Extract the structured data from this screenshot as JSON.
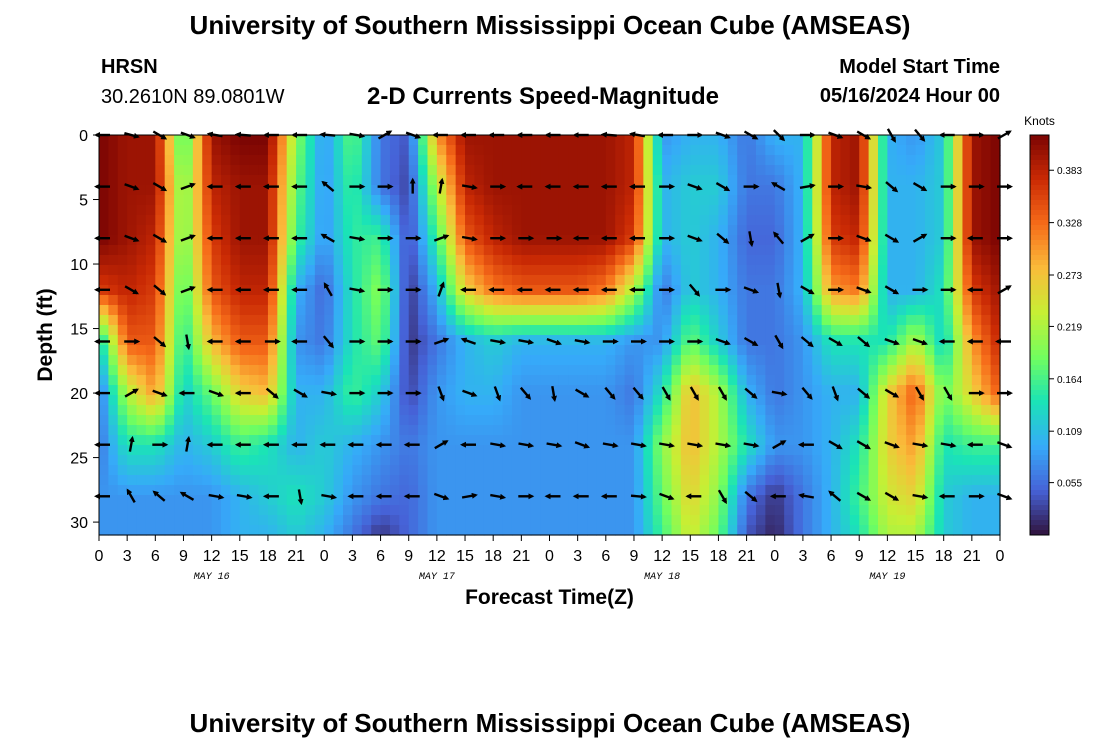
{
  "header": {
    "title": "University of Southern Mississippi Ocean Cube (AMSEAS)",
    "station": "HRSN",
    "coords": "30.2610N  89.0801W",
    "subtitle": "2-D Currents Speed-Magnitude",
    "model_start_label": "Model Start Time",
    "model_start_value": "05/16/2024 Hour 00"
  },
  "footer": {
    "title": "University of Southern Mississippi Ocean Cube (AMSEAS)"
  },
  "chart_data": {
    "type": "heatmap",
    "xlabel": "Forecast Time(Z)",
    "ylabel": "Depth (ft)",
    "xlim": [
      0,
      96
    ],
    "ylim": [
      0,
      31
    ],
    "x_tick_values": [
      0,
      3,
      6,
      9,
      12,
      15,
      18,
      21,
      24,
      27,
      30,
      33,
      36,
      39,
      42,
      45,
      48,
      51,
      54,
      57,
      60,
      63,
      66,
      69,
      72,
      75,
      78,
      81,
      84,
      87,
      90,
      93,
      96
    ],
    "x_tick_labels": [
      "0",
      "3",
      "6",
      "9",
      "12",
      "15",
      "18",
      "21",
      "0",
      "3",
      "6",
      "9",
      "12",
      "15",
      "18",
      "21",
      "0",
      "3",
      "6",
      "9",
      "12",
      "15",
      "18",
      "21",
      "0",
      "3",
      "6",
      "9",
      "12",
      "15",
      "18",
      "21",
      "0"
    ],
    "day_labels": [
      {
        "hour": 12,
        "text": "MAY 16"
      },
      {
        "hour": 36,
        "text": "MAY 17"
      },
      {
        "hour": 60,
        "text": "MAY 18"
      },
      {
        "hour": 84,
        "text": "MAY 19"
      }
    ],
    "y_ticks": [
      0,
      5,
      10,
      15,
      20,
      25,
      30
    ],
    "colorbar": {
      "unit": "Knots",
      "min": 0,
      "max": 0.42,
      "ticks": [
        0.055,
        0.109,
        0.164,
        0.219,
        0.273,
        0.328,
        0.383
      ],
      "tick_labels": [
        "0.055",
        "0.109",
        "0.164",
        "0.219",
        "0.273",
        "0.328",
        "0.383"
      ],
      "colors": [
        "#30123b",
        "#4662d7",
        "#36aaf9",
        "#1ae4b6",
        "#72fe5e",
        "#c7ef34",
        "#fabb3a",
        "#f66b19",
        "#ca2a04",
        "#7a0403"
      ]
    },
    "speed_knots_matrix": {
      "note": "rows = depth levels (ft), columns = forecast hours; values estimated from color scale",
      "depths_ft": [
        0,
        4,
        8,
        12,
        16,
        20,
        24,
        28,
        31
      ],
      "hours": [
        0,
        3,
        6,
        9,
        12,
        15,
        18,
        21,
        24,
        27,
        30,
        33,
        36,
        39,
        42,
        45,
        48,
        51,
        54,
        57,
        60,
        63,
        66,
        69,
        72,
        75,
        78,
        81,
        84,
        87,
        90,
        93,
        96
      ],
      "values": [
        [
          0.42,
          0.4,
          0.4,
          0.15,
          0.4,
          0.42,
          0.42,
          0.2,
          0.08,
          0.18,
          0.06,
          0.04,
          0.3,
          0.4,
          0.4,
          0.4,
          0.4,
          0.4,
          0.4,
          0.38,
          0.08,
          0.1,
          0.1,
          0.06,
          0.1,
          0.1,
          0.38,
          0.4,
          0.1,
          0.08,
          0.12,
          0.4,
          0.42
        ],
        [
          0.42,
          0.4,
          0.4,
          0.18,
          0.38,
          0.4,
          0.4,
          0.18,
          0.08,
          0.16,
          0.06,
          0.03,
          0.22,
          0.38,
          0.4,
          0.4,
          0.4,
          0.4,
          0.4,
          0.38,
          0.1,
          0.12,
          0.12,
          0.06,
          0.06,
          0.1,
          0.38,
          0.4,
          0.1,
          0.1,
          0.12,
          0.4,
          0.42
        ],
        [
          0.42,
          0.4,
          0.38,
          0.18,
          0.36,
          0.4,
          0.4,
          0.16,
          0.08,
          0.15,
          0.16,
          0.03,
          0.16,
          0.34,
          0.38,
          0.4,
          0.4,
          0.4,
          0.4,
          0.36,
          0.1,
          0.12,
          0.1,
          0.05,
          0.05,
          0.1,
          0.36,
          0.38,
          0.1,
          0.1,
          0.12,
          0.4,
          0.42
        ],
        [
          0.36,
          0.38,
          0.36,
          0.16,
          0.34,
          0.38,
          0.38,
          0.1,
          0.05,
          0.14,
          0.2,
          0.02,
          0.1,
          0.26,
          0.32,
          0.34,
          0.34,
          0.34,
          0.32,
          0.22,
          0.06,
          0.12,
          0.1,
          0.06,
          0.06,
          0.1,
          0.3,
          0.32,
          0.1,
          0.1,
          0.14,
          0.36,
          0.4
        ],
        [
          0.12,
          0.34,
          0.34,
          0.14,
          0.28,
          0.34,
          0.34,
          0.08,
          0.06,
          0.14,
          0.18,
          0.02,
          0.06,
          0.1,
          0.12,
          0.1,
          0.1,
          0.1,
          0.1,
          0.08,
          0.08,
          0.18,
          0.12,
          0.06,
          0.06,
          0.08,
          0.14,
          0.14,
          0.14,
          0.22,
          0.12,
          0.3,
          0.38
        ],
        [
          0.06,
          0.22,
          0.3,
          0.12,
          0.18,
          0.26,
          0.28,
          0.1,
          0.1,
          0.16,
          0.12,
          0.03,
          0.08,
          0.1,
          0.1,
          0.08,
          0.08,
          0.08,
          0.08,
          0.06,
          0.14,
          0.28,
          0.22,
          0.1,
          0.06,
          0.08,
          0.1,
          0.1,
          0.26,
          0.34,
          0.18,
          0.26,
          0.34
        ],
        [
          0.06,
          0.14,
          0.14,
          0.1,
          0.12,
          0.16,
          0.14,
          0.1,
          0.12,
          0.1,
          0.08,
          0.06,
          0.08,
          0.08,
          0.08,
          0.08,
          0.08,
          0.08,
          0.08,
          0.08,
          0.2,
          0.28,
          0.22,
          0.14,
          0.08,
          0.08,
          0.1,
          0.14,
          0.26,
          0.3,
          0.14,
          0.16,
          0.16
        ],
        [
          0.08,
          0.08,
          0.08,
          0.08,
          0.08,
          0.1,
          0.12,
          0.14,
          0.12,
          0.08,
          0.06,
          0.05,
          0.08,
          0.08,
          0.08,
          0.08,
          0.08,
          0.08,
          0.08,
          0.08,
          0.18,
          0.26,
          0.2,
          0.06,
          0.02,
          0.06,
          0.1,
          0.16,
          0.24,
          0.26,
          0.12,
          0.1,
          0.1
        ],
        [
          0.08,
          0.08,
          0.08,
          0.08,
          0.08,
          0.1,
          0.1,
          0.12,
          0.1,
          0.06,
          0.02,
          0.05,
          0.08,
          0.08,
          0.08,
          0.08,
          0.08,
          0.08,
          0.08,
          0.08,
          0.16,
          0.24,
          0.18,
          0.04,
          0.01,
          0.06,
          0.1,
          0.14,
          0.22,
          0.22,
          0.12,
          0.1,
          0.1
        ]
      ]
    },
    "current_arrows": {
      "note": "direction angles in degrees (0 = pointing right/east, 90 = up/north); grid points every 3 h at depths 0,4,8,...,28 ft",
      "depths_ft": [
        0,
        4,
        8,
        12,
        16,
        20,
        24,
        28
      ],
      "hours": [
        0,
        3,
        6,
        9,
        12,
        15,
        18,
        21,
        24,
        27,
        30,
        33,
        36,
        39,
        42,
        45,
        48,
        51,
        54,
        57,
        60,
        63,
        66,
        69,
        72,
        75,
        78,
        81,
        84,
        87,
        90,
        93,
        96
      ],
      "angles_deg": [
        [
          180,
          -15,
          -30,
          -20,
          170,
          175,
          180,
          180,
          175,
          -10,
          30,
          -20,
          180,
          180,
          180,
          180,
          180,
          180,
          175,
          170,
          180,
          0,
          -20,
          -30,
          -45,
          0,
          -20,
          -30,
          -60,
          -50,
          180,
          0,
          30
        ],
        [
          180,
          -20,
          -30,
          20,
          180,
          180,
          180,
          180,
          140,
          0,
          0,
          90,
          80,
          -10,
          0,
          180,
          180,
          180,
          180,
          180,
          0,
          -20,
          -30,
          0,
          150,
          10,
          0,
          -10,
          -40,
          -30,
          0,
          0,
          0
        ],
        [
          180,
          -20,
          -30,
          20,
          180,
          180,
          180,
          180,
          150,
          -10,
          0,
          0,
          20,
          -10,
          0,
          0,
          0,
          180,
          180,
          180,
          0,
          -20,
          -40,
          -80,
          130,
          30,
          0,
          -20,
          -30,
          30,
          0,
          180,
          0
        ],
        [
          180,
          -30,
          -40,
          20,
          180,
          180,
          180,
          180,
          120,
          -10,
          0,
          0,
          70,
          180,
          180,
          180,
          180,
          180,
          180,
          180,
          0,
          -50,
          0,
          -20,
          -80,
          -30,
          0,
          -20,
          -30,
          0,
          0,
          180,
          30
        ],
        [
          180,
          0,
          -40,
          -80,
          180,
          180,
          0,
          180,
          -50,
          0,
          0,
          0,
          20,
          160,
          -10,
          -10,
          -20,
          -10,
          0,
          0,
          0,
          0,
          -20,
          -30,
          -60,
          -40,
          -30,
          -40,
          -20,
          -20,
          180,
          180,
          180
        ],
        [
          180,
          30,
          -20,
          180,
          -20,
          180,
          -40,
          -30,
          -10,
          0,
          0,
          0,
          -70,
          -20,
          -70,
          -50,
          -80,
          -30,
          -50,
          -50,
          -60,
          -60,
          -60,
          -40,
          -10,
          -50,
          -70,
          -40,
          -30,
          -60,
          -60,
          0,
          0
        ],
        [
          180,
          80,
          0,
          80,
          180,
          180,
          180,
          180,
          180,
          180,
          180,
          180,
          30,
          180,
          -10,
          -10,
          -10,
          -20,
          -10,
          -10,
          -10,
          -10,
          -10,
          -10,
          30,
          180,
          -30,
          -30,
          -20,
          -10,
          -10,
          180,
          -20
        ],
        [
          180,
          120,
          140,
          150,
          -10,
          -10,
          180,
          -80,
          -10,
          180,
          180,
          180,
          -20,
          10,
          -10,
          0,
          180,
          180,
          180,
          -5,
          -20,
          180,
          -60,
          -40,
          180,
          170,
          140,
          -30,
          -30,
          -10,
          180,
          0,
          -20
        ]
      ]
    }
  }
}
